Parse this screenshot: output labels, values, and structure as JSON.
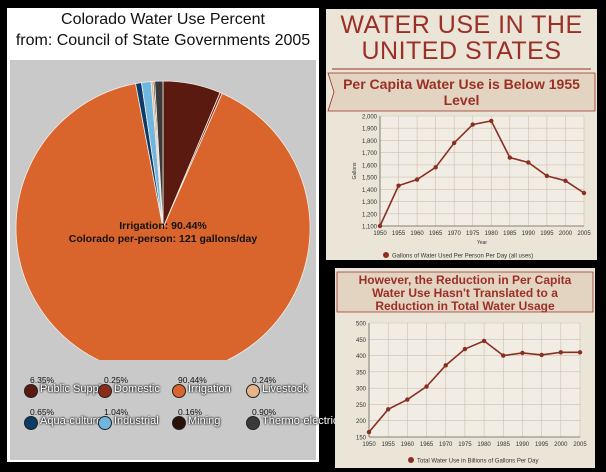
{
  "pie_panel": {
    "title": "Colorado Water Use Percent",
    "subtitle": "from: Council of State Governments 2005",
    "center_line1": "Irrigation: 90.44%",
    "center_line2": "Colorado per-person:  121 gallons/day"
  },
  "us_panel": {
    "title_line1": "WATER USE IN THE",
    "title_line2": "UNITED STATES",
    "subtitle_line1": "Per Capita Water Use is Below 1955",
    "subtitle_line2": "Level"
  },
  "total_panel": {
    "subtitle_line1": "However, the Reduction in Per Capita",
    "subtitle_line2": "Water Use Hasn't Translated to a",
    "subtitle_line3": "Reduction in Total Water Usage"
  },
  "chart_data": [
    {
      "type": "pie",
      "title": "Colorado Water Use Percent",
      "subtitle": "from: Council of State Governments 2005",
      "slices": [
        {
          "label": "Public Supply",
          "pct_label": "6.35%",
          "value": 6.35,
          "color": "#5a1a10"
        },
        {
          "label": "Domestic",
          "pct_label": "0.25%",
          "value": 0.25,
          "color": "#8a2e1c"
        },
        {
          "label": "Irrigation",
          "pct_label": "90.44%",
          "value": 90.44,
          "color": "#d9642c"
        },
        {
          "label": "Livestock",
          "pct_label": "0.24%",
          "value": 0.24,
          "color": "#e8b48a"
        },
        {
          "label": "Aqua-culture",
          "pct_label": "0.65%",
          "value": 0.65,
          "color": "#0d3a66"
        },
        {
          "label": "Industrial",
          "pct_label": "1.04%",
          "value": 1.04,
          "color": "#6fb7e0"
        },
        {
          "label": "Mining",
          "pct_label": "0.16%",
          "value": 0.16,
          "color": "#2a1208"
        },
        {
          "label": "Thermo-electric",
          "pct_label": "0.90%",
          "value": 0.9,
          "color": "#3a3a3a"
        }
      ]
    },
    {
      "type": "line",
      "title": "Per Capita Water Use is Below 1955 Level",
      "xlabel": "Year",
      "ylabel": "Gallons",
      "legend": "Gallons of Water Used Per Person Per Day (all uses)",
      "x": [
        1950,
        1955,
        1960,
        1965,
        1970,
        1975,
        1980,
        1985,
        1990,
        1995,
        2000,
        2005
      ],
      "y": [
        1100,
        1430,
        1480,
        1580,
        1780,
        1930,
        1960,
        1660,
        1620,
        1510,
        1470,
        1370
      ],
      "ylim": [
        1100,
        2000
      ],
      "yticks": [
        1100,
        1200,
        1300,
        1400,
        1500,
        1600,
        1700,
        1800,
        1900,
        2000
      ],
      "ytick_labels": [
        "1,100",
        "1,200",
        "1,300",
        "1,400",
        "1,500",
        "1,600",
        "1,700",
        "1,800",
        "1,900",
        "2,000"
      ],
      "color": "#8a2e22"
    },
    {
      "type": "line",
      "title": "However, the Reduction in Per Capita Water Use Hasn't Translated to a Reduction in Total Water Usage",
      "legend": "Total Water Use in Billions of Gallons Per Day",
      "x": [
        1950,
        1955,
        1960,
        1965,
        1970,
        1975,
        1980,
        1985,
        1990,
        1995,
        2000,
        2005
      ],
      "y": [
        165,
        235,
        265,
        305,
        370,
        420,
        445,
        400,
        408,
        402,
        410,
        410
      ],
      "ylim": [
        150,
        500
      ],
      "yticks": [
        150,
        200,
        250,
        300,
        350,
        400,
        450,
        500
      ],
      "ytick_labels": [
        "150",
        "200",
        "250",
        "300",
        "350",
        "400",
        "450",
        "500"
      ],
      "color": "#8a2e22"
    }
  ]
}
